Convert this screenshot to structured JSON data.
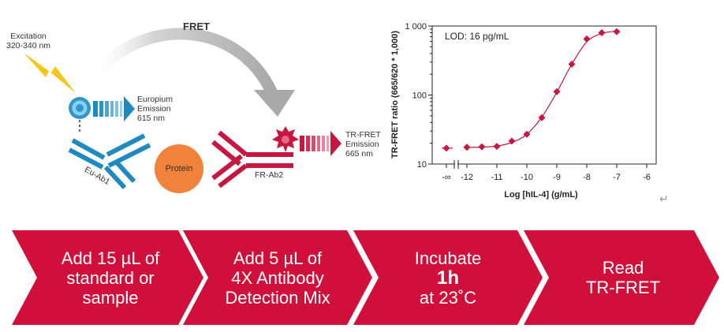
{
  "diagram": {
    "fret_label": "FRET",
    "excitation_label": [
      "Excitation",
      "320-340 nm"
    ],
    "europium_label": [
      "Europium",
      "Emission",
      "615 nm"
    ],
    "eu_ab_label": "Eu-Ab1",
    "protein_label": "Protein",
    "fr_ab_label": "FR-Ab2",
    "trfret_label": [
      "TR-FRET",
      "Emission",
      "665 nm"
    ],
    "colors": {
      "blue": "#1f8ac0",
      "red": "#c8173e",
      "orange": "#f0823c",
      "gray": "#b7b7b7",
      "yellow": "#f5c518"
    }
  },
  "chart_data": {
    "type": "scatter",
    "annotation": "LOD: 16 pg/mL",
    "xlabel": "Log [hIL-4] (g/mL)",
    "ylabel": "TR-FRET ratio (665/620 * 1,000)",
    "x_ticks": [
      "-∞",
      "-12",
      "-11",
      "-10",
      "-9",
      "-8",
      "-7",
      "-6"
    ],
    "y_ticks": [
      "10",
      "100",
      "1 000"
    ],
    "y_scale": "log",
    "ylim": [
      10,
      1000
    ],
    "xlim": [
      -12,
      -6
    ],
    "blank_point": {
      "x": "-∞",
      "y": 17
    },
    "points": [
      {
        "x": -12.0,
        "y": 17.5
      },
      {
        "x": -11.5,
        "y": 17.8
      },
      {
        "x": -11.0,
        "y": 18
      },
      {
        "x": -10.5,
        "y": 21.5
      },
      {
        "x": -10.0,
        "y": 27
      },
      {
        "x": -9.5,
        "y": 47
      },
      {
        "x": -9.0,
        "y": 112
      },
      {
        "x": -8.5,
        "y": 280
      },
      {
        "x": -8.0,
        "y": 650
      },
      {
        "x": -7.5,
        "y": 800
      },
      {
        "x": -7.0,
        "y": 830
      }
    ],
    "curve": {
      "points": [
        {
          "x": -12.0,
          "y": 17.4
        },
        {
          "x": -11.5,
          "y": 17.6
        },
        {
          "x": -11.0,
          "y": 18.2
        },
        {
          "x": -10.5,
          "y": 20.5
        },
        {
          "x": -10.0,
          "y": 27
        },
        {
          "x": -9.5,
          "y": 48
        },
        {
          "x": -9.0,
          "y": 110
        },
        {
          "x": -8.5,
          "y": 280
        },
        {
          "x": -8.0,
          "y": 590
        },
        {
          "x": -7.5,
          "y": 780
        },
        {
          "x": -7.0,
          "y": 845
        }
      ]
    },
    "color": "#c8173e"
  },
  "return_symbol": "↵",
  "steps": [
    {
      "lines": [
        "Add 15 µL of",
        "standard or",
        "sample"
      ]
    },
    {
      "lines": [
        "Add 5 µL of",
        "4X Antibody",
        "Detection Mix"
      ]
    },
    {
      "lines": [
        "Incubate",
        "1h",
        "at 23˚C"
      ]
    },
    {
      "lines": [
        "Read",
        "TR-FRET"
      ]
    }
  ],
  "step_color": "#d0103a"
}
